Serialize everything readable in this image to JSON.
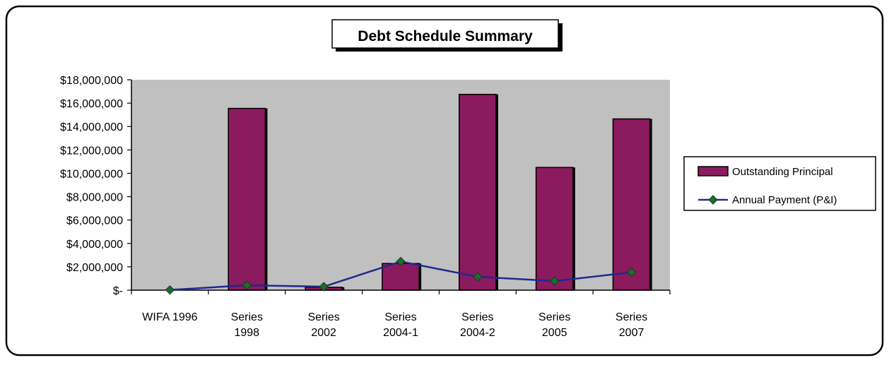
{
  "chart_data": {
    "type": "bar",
    "title": "Debt Schedule Summary",
    "categories": [
      [
        "WIFA 1996"
      ],
      [
        "Series",
        "1998"
      ],
      [
        "Series",
        "2002"
      ],
      [
        "Series",
        "2004-1"
      ],
      [
        "Series",
        "2004-2"
      ],
      [
        "Series",
        "2005"
      ],
      [
        "Series",
        "2007"
      ]
    ],
    "series": [
      {
        "name": "Outstanding Principal",
        "type": "bar",
        "color": "#8b1a5e",
        "values": [
          0,
          15550000,
          250000,
          2280000,
          16750000,
          10500000,
          14650000
        ]
      },
      {
        "name": "Annual Payment (P&I)",
        "type": "line",
        "color": "#1f2a8c",
        "marker_color": "#1e6b2e",
        "values": [
          20000,
          420000,
          300000,
          2450000,
          1150000,
          780000,
          1530000
        ]
      }
    ],
    "ylim": [
      0,
      18000000
    ],
    "yticks": [
      {
        "value": 0,
        "label": "$-"
      },
      {
        "value": 2000000,
        "label": "$2,000,000"
      },
      {
        "value": 4000000,
        "label": "$4,000,000"
      },
      {
        "value": 6000000,
        "label": "$6,000,000"
      },
      {
        "value": 8000000,
        "label": "$8,000,000"
      },
      {
        "value": 10000000,
        "label": "$10,000,000"
      },
      {
        "value": 12000000,
        "label": "$12,000,000"
      },
      {
        "value": 14000000,
        "label": "$14,000,000"
      },
      {
        "value": 16000000,
        "label": "$16,000,000"
      },
      {
        "value": 18000000,
        "label": "$18,000,000"
      }
    ],
    "plot_background": "#c0c0c0",
    "grid": false,
    "legend_position": "right"
  }
}
